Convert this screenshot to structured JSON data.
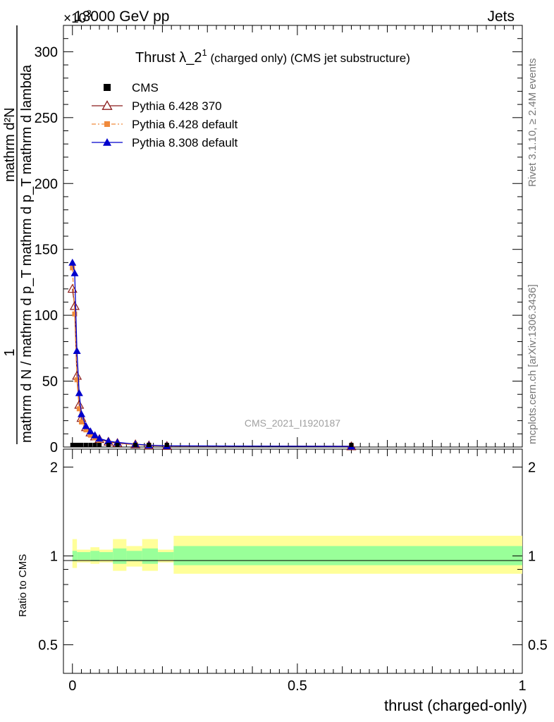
{
  "chart_data": {
    "type": "line",
    "header_left": "13000 GeV pp",
    "header_right": "Jets",
    "title_main": "Thrust λ_2",
    "title_sup": "1",
    "title_rest": " (charged only) (CMS jet substructure)",
    "exponent_label": "×10",
    "exponent_power": "3",
    "ylabel_num": "1",
    "ylabel_den": "mathrm d N / mathrm d p_T mathrm d p_T mathrm d lambda",
    "ylabel_top": "mathrm d²N",
    "xlabel": "thrust (charged-only)",
    "ratio_ylabel": "Ratio to CMS",
    "watermark": "CMS_2021_I1920187",
    "side_text_top": "Rivet 3.1.10, ≥ 2.4M events",
    "side_text_bottom": "mcplots.cern.ch [arXiv:1306.3436]",
    "xlim": [
      -0.02,
      1.0
    ],
    "ylim": [
      0,
      320
    ],
    "ratio_ylim": [
      0.4,
      2.3
    ],
    "x_ticks": [
      {
        "v": 0,
        "label": "0"
      },
      {
        "v": 0.5,
        "label": "0.5"
      },
      {
        "v": 1,
        "label": "1"
      }
    ],
    "y_ticks": [
      {
        "v": 0,
        "label": "0"
      },
      {
        "v": 50,
        "label": "50"
      },
      {
        "v": 100,
        "label": "100"
      },
      {
        "v": 150,
        "label": "150"
      },
      {
        "v": 200,
        "label": "200"
      },
      {
        "v": 250,
        "label": "250"
      },
      {
        "v": 300,
        "label": "300"
      }
    ],
    "ratio_ticks": [
      {
        "v": 0.5,
        "label": "0.5"
      },
      {
        "v": 1,
        "label": "1"
      },
      {
        "v": 2,
        "label": "2"
      }
    ],
    "legend": [
      {
        "name": "CMS",
        "marker": "square",
        "color": "#000000"
      },
      {
        "name": "Pythia 6.428 370",
        "marker": "open-triangle",
        "color": "#8b1a1a"
      },
      {
        "name": "Pythia 6.428 default",
        "marker": "square-small",
        "color": "#f08a3c"
      },
      {
        "name": "Pythia 8.308 default",
        "marker": "triangle",
        "color": "#0000cc"
      }
    ],
    "cms_x": [
      0.0,
      0.005,
      0.01,
      0.015,
      0.02,
      0.03,
      0.04,
      0.05,
      0.06,
      0.08,
      0.1,
      0.14,
      0.17,
      0.21,
      0.62
    ],
    "series": [
      {
        "name": "Pythia 6.428 370",
        "color": "#8b1a1a",
        "dash": "",
        "x": [
          0.0,
          0.005,
          0.01,
          0.015,
          0.02,
          0.03,
          0.04,
          0.05,
          0.06,
          0.08,
          0.1,
          0.14,
          0.17,
          0.21,
          0.62
        ],
        "y": [
          120,
          107,
          54,
          32,
          22,
          15,
          11,
          8,
          6,
          4,
          3,
          2,
          1.2,
          0.8,
          0.5
        ]
      },
      {
        "name": "Pythia 6.428 default",
        "color": "#f08a3c",
        "dash": "6,3,2,3",
        "x": [
          0.0,
          0.005,
          0.01,
          0.015,
          0.02,
          0.03,
          0.04,
          0.05,
          0.06,
          0.08,
          0.1,
          0.14,
          0.17,
          0.21,
          0.62
        ],
        "y": [
          136,
          101,
          51,
          29,
          19,
          13,
          9,
          7,
          5,
          3.5,
          2.5,
          1.8,
          1.1,
          0.7,
          0.6
        ]
      },
      {
        "name": "Pythia 8.308 default",
        "color": "#0000cc",
        "dash": "",
        "x": [
          0.0,
          0.005,
          0.01,
          0.015,
          0.02,
          0.03,
          0.04,
          0.05,
          0.06,
          0.08,
          0.1,
          0.14,
          0.17,
          0.21,
          0.62
        ],
        "y": [
          140,
          132,
          73,
          41,
          25,
          16,
          12,
          9,
          6.5,
          4.5,
          3.5,
          2.2,
          1.4,
          0.9,
          0.5
        ]
      }
    ],
    "ratio_bands": [
      {
        "x0": 0.0,
        "x1": 0.01,
        "inner": [
          0.96,
          1.04
        ],
        "outer": [
          0.91,
          1.14
        ]
      },
      {
        "x0": 0.01,
        "x1": 0.04,
        "inner": [
          0.97,
          1.03
        ],
        "outer": [
          0.95,
          1.05
        ]
      },
      {
        "x0": 0.04,
        "x1": 0.06,
        "inner": [
          0.96,
          1.04
        ],
        "outer": [
          0.94,
          1.07
        ]
      },
      {
        "x0": 0.06,
        "x1": 0.09,
        "inner": [
          0.97,
          1.03
        ],
        "outer": [
          0.95,
          1.05
        ]
      },
      {
        "x0": 0.09,
        "x1": 0.12,
        "inner": [
          0.94,
          1.06
        ],
        "outer": [
          0.89,
          1.14
        ]
      },
      {
        "x0": 0.12,
        "x1": 0.155,
        "inner": [
          0.96,
          1.04
        ],
        "outer": [
          0.92,
          1.08
        ]
      },
      {
        "x0": 0.155,
        "x1": 0.19,
        "inner": [
          0.94,
          1.06
        ],
        "outer": [
          0.89,
          1.14
        ]
      },
      {
        "x0": 0.19,
        "x1": 0.225,
        "inner": [
          0.97,
          1.03
        ],
        "outer": [
          0.95,
          1.05
        ]
      },
      {
        "x0": 0.225,
        "x1": 1.0,
        "inner": [
          0.93,
          1.08
        ],
        "outer": [
          0.87,
          1.17
        ]
      }
    ]
  }
}
